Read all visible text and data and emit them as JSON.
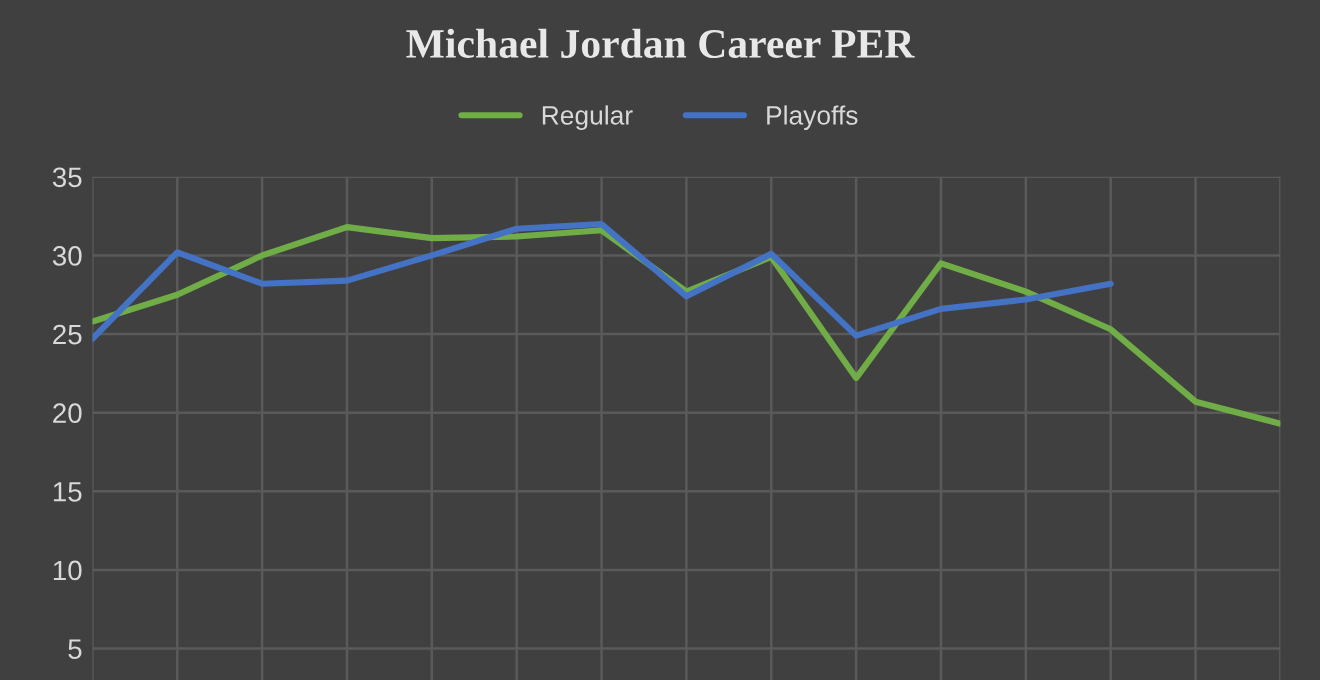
{
  "chart_data": {
    "type": "line",
    "title": "Michael Jordan Career PER",
    "categories": [
      null,
      null,
      null,
      null,
      null,
      null,
      null,
      null,
      null,
      null,
      null,
      null,
      null,
      null,
      null
    ],
    "series": [
      {
        "name": "Regular",
        "color": "#70ad47",
        "values": [
          25.8,
          27.5,
          30.0,
          31.8,
          31.1,
          31.2,
          31.6,
          27.7,
          29.9,
          22.2,
          29.5,
          27.7,
          25.3,
          20.7,
          19.3
        ]
      },
      {
        "name": "Playoffs",
        "color": "#4472c4",
        "values": [
          24.7,
          30.2,
          28.2,
          28.4,
          30.0,
          31.7,
          32.0,
          27.4,
          30.1,
          24.9,
          26.6,
          27.2,
          28.2,
          null,
          null
        ]
      }
    ],
    "ylim": [
      3,
      35
    ],
    "yticks": [
      5,
      10,
      15,
      20,
      25,
      30,
      35
    ],
    "grid": true,
    "legend": "top",
    "marker": "none",
    "line_style": "solid"
  }
}
